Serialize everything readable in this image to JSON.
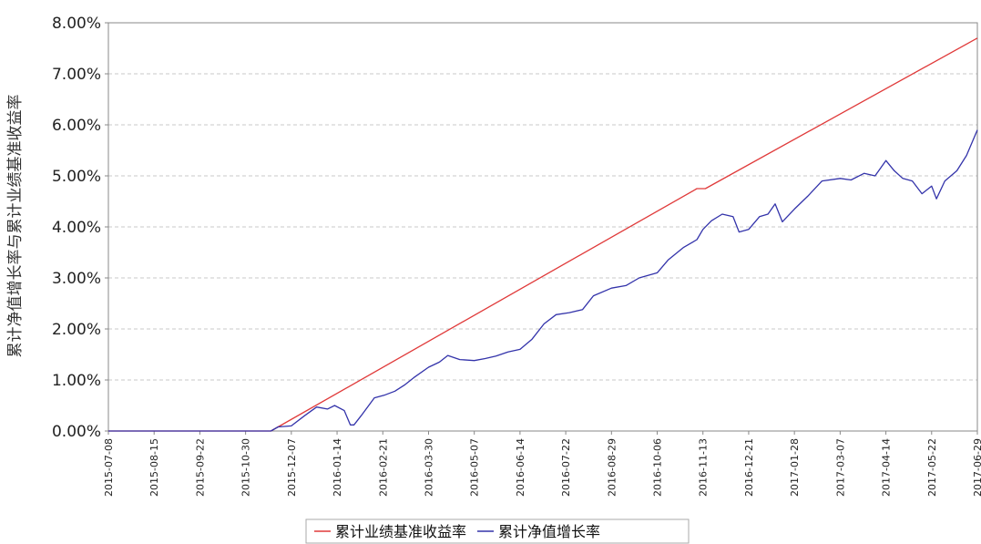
{
  "chart_data": {
    "type": "line",
    "title": "",
    "xlabel": "",
    "ylabel": "累计净值增长率与累计业绩基准收益率",
    "y_unit": "%",
    "ylim": [
      0,
      8
    ],
    "y_ticks": [
      "0.00%",
      "1.00%",
      "2.00%",
      "3.00%",
      "4.00%",
      "5.00%",
      "6.00%",
      "7.00%",
      "8.00%"
    ],
    "x_range": [
      "2015-07-08",
      "2017-06-29"
    ],
    "x_ticks": [
      "2015-07-08",
      "2015-08-15",
      "2015-09-22",
      "2015-10-30",
      "2015-12-07",
      "2016-01-14",
      "2016-02-21",
      "2016-03-30",
      "2016-05-07",
      "2016-06-14",
      "2016-07-22",
      "2016-08-29",
      "2016-10-06",
      "2016-11-13",
      "2016-12-21",
      "2017-01-28",
      "2017-03-07",
      "2017-04-14",
      "2017-05-22",
      "2017-06-29"
    ],
    "grid": true,
    "legend": "bottom",
    "series": [
      {
        "name": "累计业绩基准收益率",
        "color": "#e03a3a",
        "points": [
          [
            "2015-07-08",
            0.0
          ],
          [
            "2015-11-20",
            0.0
          ],
          [
            "2016-11-08",
            4.75
          ],
          [
            "2016-11-15",
            4.75
          ],
          [
            "2017-06-29",
            7.7
          ]
        ]
      },
      {
        "name": "累计净值增长率",
        "color": "#3333aa",
        "points": [
          [
            "2015-07-08",
            0.0
          ],
          [
            "2015-11-20",
            0.0
          ],
          [
            "2015-11-26",
            0.08
          ],
          [
            "2015-12-07",
            0.1
          ],
          [
            "2015-12-18",
            0.3
          ],
          [
            "2015-12-28",
            0.47
          ],
          [
            "2016-01-06",
            0.43
          ],
          [
            "2016-01-12",
            0.5
          ],
          [
            "2016-01-20",
            0.4
          ],
          [
            "2016-01-25",
            0.12
          ],
          [
            "2016-01-28",
            0.12
          ],
          [
            "2016-02-03",
            0.3
          ],
          [
            "2016-02-14",
            0.65
          ],
          [
            "2016-02-22",
            0.7
          ],
          [
            "2016-03-02",
            0.78
          ],
          [
            "2016-03-10",
            0.9
          ],
          [
            "2016-03-18",
            1.05
          ],
          [
            "2016-03-30",
            1.25
          ],
          [
            "2016-04-08",
            1.35
          ],
          [
            "2016-04-15",
            1.48
          ],
          [
            "2016-04-25",
            1.4
          ],
          [
            "2016-05-07",
            1.38
          ],
          [
            "2016-05-16",
            1.42
          ],
          [
            "2016-05-25",
            1.47
          ],
          [
            "2016-06-04",
            1.55
          ],
          [
            "2016-06-14",
            1.6
          ],
          [
            "2016-06-24",
            1.8
          ],
          [
            "2016-07-04",
            2.1
          ],
          [
            "2016-07-14",
            2.28
          ],
          [
            "2016-07-25",
            2.32
          ],
          [
            "2016-08-05",
            2.38
          ],
          [
            "2016-08-14",
            2.65
          ],
          [
            "2016-08-29",
            2.8
          ],
          [
            "2016-09-10",
            2.85
          ],
          [
            "2016-09-21",
            3.0
          ],
          [
            "2016-10-06",
            3.1
          ],
          [
            "2016-10-15",
            3.35
          ],
          [
            "2016-10-28",
            3.6
          ],
          [
            "2016-11-08",
            3.75
          ],
          [
            "2016-11-13",
            3.95
          ],
          [
            "2016-11-20",
            4.12
          ],
          [
            "2016-11-29",
            4.25
          ],
          [
            "2016-12-08",
            4.2
          ],
          [
            "2016-12-13",
            3.9
          ],
          [
            "2016-12-21",
            3.95
          ],
          [
            "2016-12-30",
            4.2
          ],
          [
            "2017-01-06",
            4.25
          ],
          [
            "2017-01-12",
            4.45
          ],
          [
            "2017-01-18",
            4.1
          ],
          [
            "2017-01-28",
            4.35
          ],
          [
            "2017-02-08",
            4.6
          ],
          [
            "2017-02-20",
            4.9
          ],
          [
            "2017-03-07",
            4.95
          ],
          [
            "2017-03-16",
            4.92
          ],
          [
            "2017-03-27",
            5.05
          ],
          [
            "2017-04-05",
            5.0
          ],
          [
            "2017-04-14",
            5.3
          ],
          [
            "2017-04-21",
            5.1
          ],
          [
            "2017-04-28",
            4.95
          ],
          [
            "2017-05-06",
            4.9
          ],
          [
            "2017-05-14",
            4.65
          ],
          [
            "2017-05-22",
            4.8
          ],
          [
            "2017-05-26",
            4.55
          ],
          [
            "2017-06-02",
            4.9
          ],
          [
            "2017-06-12",
            5.1
          ],
          [
            "2017-06-20",
            5.4
          ],
          [
            "2017-06-29",
            5.9
          ]
        ]
      }
    ]
  }
}
